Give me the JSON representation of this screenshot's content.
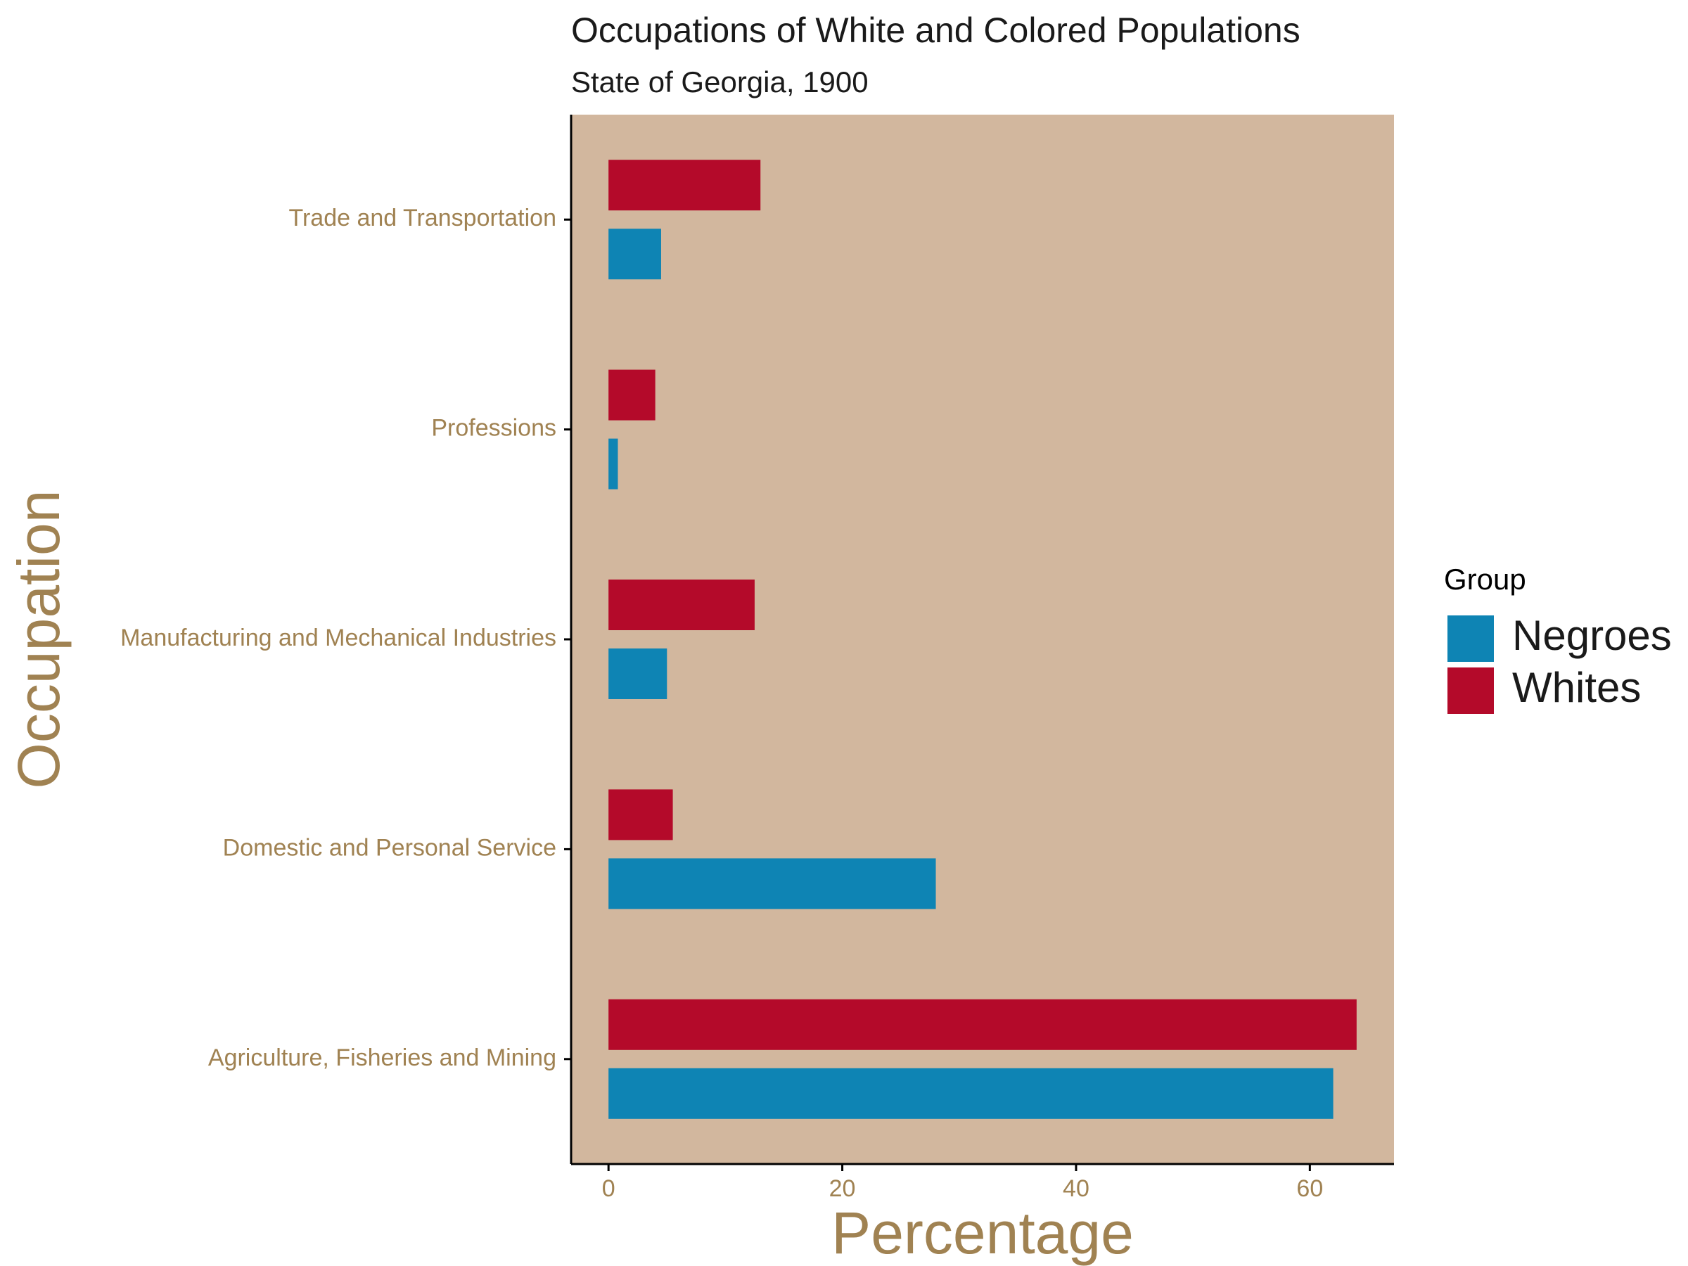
{
  "chart_data": {
    "type": "bar",
    "orientation": "horizontal",
    "title": "Occupations of White and Colored Populations",
    "subtitle": "State of Georgia, 1900",
    "xlabel": "Percentage",
    "ylabel": "Occupation",
    "categories": [
      "Agriculture, Fisheries and Mining",
      "Domestic and Personal Service",
      "Manufacturing and Mechanical Industries",
      "Professions",
      "Trade and Transportation"
    ],
    "series": [
      {
        "name": "Negroes",
        "color": "#0e84b4",
        "values": [
          62.0,
          28.0,
          5.0,
          0.8,
          4.5
        ]
      },
      {
        "name": "Whites",
        "color": "#b40a2a",
        "values": [
          64.0,
          5.5,
          12.5,
          4.0,
          13.0
        ]
      }
    ],
    "xlim": [
      -3.2,
      67.2
    ],
    "xticks": [
      0,
      20,
      40,
      60
    ],
    "grid": false,
    "legend": {
      "title": "Group",
      "position": "right"
    },
    "colors": {
      "panel_background": "#d2b79e",
      "axis_text": "#a08252",
      "title_text": "#1a1a1a"
    }
  }
}
